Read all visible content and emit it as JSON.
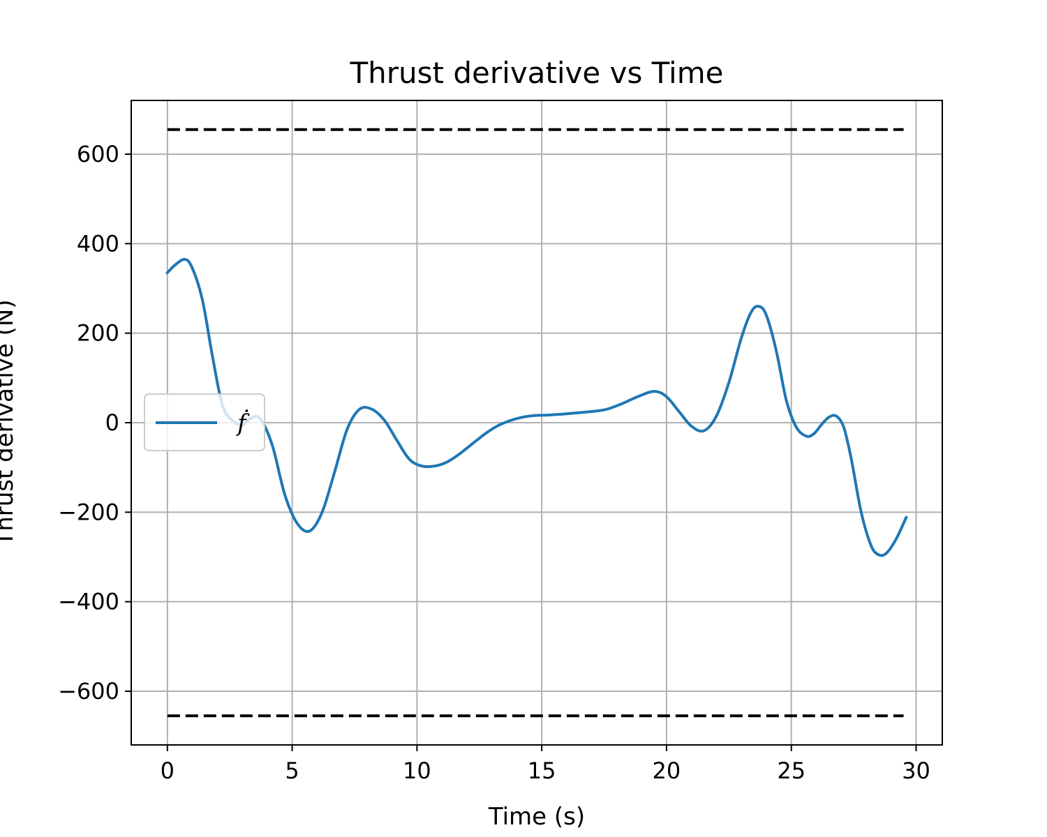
{
  "chart_data": {
    "type": "line",
    "title": "Thrust derivative vs Time",
    "xlabel": "Time (s)",
    "ylabel": "Thrust derivative (N)",
    "xlim": [
      -1.45,
      31.05
    ],
    "ylim": [
      -720,
      720
    ],
    "xticks": [
      0,
      5,
      10,
      15,
      20,
      25,
      30
    ],
    "yticks": [
      -600,
      -400,
      -200,
      0,
      200,
      400,
      600
    ],
    "xtick_labels": [
      "0",
      "5",
      "10",
      "15",
      "20",
      "25",
      "30"
    ],
    "ytick_labels": [
      "−600",
      "−400",
      "−200",
      "0",
      "200",
      "400",
      "600"
    ],
    "grid": true,
    "legend_position": "center-left",
    "series": [
      {
        "name": "ḟ",
        "color": "#1f77b4",
        "style": "solid",
        "x": [
          0,
          0.3,
          0.7,
          1.0,
          1.4,
          1.8,
          2.2,
          2.6,
          3.0,
          3.3,
          3.7,
          4.2,
          4.7,
          5.2,
          5.7,
          6.2,
          6.7,
          7.2,
          7.7,
          8.2,
          8.7,
          9.2,
          9.7,
          10.2,
          10.7,
          11.2,
          11.7,
          12.2,
          12.7,
          13.2,
          13.7,
          14.2,
          14.7,
          15.2,
          16.0,
          17.0,
          17.6,
          18.2,
          18.8,
          19.5,
          20.0,
          20.5,
          21.0,
          21.5,
          22.0,
          22.5,
          23.0,
          23.4,
          23.7,
          24.0,
          24.4,
          24.8,
          25.2,
          25.6,
          25.9,
          26.2,
          26.5,
          26.8,
          27.1,
          27.4,
          27.8,
          28.2,
          28.5,
          28.8,
          29.2,
          29.6
        ],
        "y": [
          335,
          352,
          365,
          345,
          275,
          150,
          40,
          5,
          -5,
          8,
          10,
          -50,
          -160,
          -225,
          -242,
          -200,
          -110,
          -15,
          30,
          30,
          5,
          -40,
          -82,
          -97,
          -97,
          -88,
          -70,
          -48,
          -26,
          -8,
          4,
          12,
          16,
          17,
          20,
          25,
          30,
          42,
          57,
          70,
          58,
          25,
          -8,
          -18,
          15,
          90,
          190,
          248,
          260,
          240,
          160,
          50,
          -10,
          -30,
          -25,
          -5,
          12,
          15,
          -10,
          -80,
          -200,
          -275,
          -295,
          -292,
          -260,
          -212
        ]
      },
      {
        "name": "",
        "color": "#000000",
        "style": "dashed",
        "x": [
          0,
          29.5
        ],
        "y": [
          655,
          655
        ]
      },
      {
        "name": "",
        "color": "#000000",
        "style": "dashed",
        "x": [
          0,
          29.5
        ],
        "y": [
          -655,
          -655
        ]
      }
    ]
  }
}
